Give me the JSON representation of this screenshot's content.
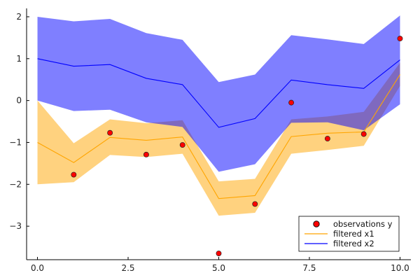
{
  "chart_data": {
    "type": "line",
    "title": "",
    "xlabel": "",
    "ylabel": "",
    "xlim": [
      -0.3,
      10.3
    ],
    "ylim": [
      -3.8,
      2.2
    ],
    "grid": false,
    "legend_position": "bottom-right",
    "x_ticks": [
      0,
      2.5,
      5,
      7.5,
      10
    ],
    "x_tick_labels": [
      "0.0",
      "2.5",
      "5.0",
      "7.5",
      "10.0"
    ],
    "y_ticks": [
      -3,
      -2,
      -1,
      0,
      1,
      2
    ],
    "y_tick_labels": [
      "−3",
      "−2",
      "−1",
      "0",
      "1",
      "2"
    ],
    "x": [
      0,
      1,
      2,
      3,
      4,
      5,
      6,
      7,
      8,
      9,
      10
    ],
    "series": [
      {
        "name": "filtered x2",
        "kind": "line_band",
        "color": "#0000ff",
        "fill": "#7d7dff",
        "mean": [
          1.0,
          0.82,
          0.86,
          0.53,
          0.38,
          -0.64,
          -0.43,
          0.49,
          0.38,
          0.29,
          0.97
        ],
        "lower": [
          0.0,
          -0.25,
          -0.22,
          -0.52,
          -0.63,
          -1.7,
          -1.52,
          -0.53,
          -0.52,
          -0.71,
          -0.09
        ],
        "upper": [
          2.0,
          1.89,
          1.95,
          1.61,
          1.45,
          0.44,
          0.62,
          1.56,
          1.46,
          1.35,
          2.03
        ]
      },
      {
        "name": "filtered x1",
        "kind": "line_band",
        "color": "#ffa500",
        "fill": "#ffa500",
        "mean": [
          -1.0,
          -1.48,
          -0.88,
          -0.95,
          -0.87,
          -2.34,
          -2.27,
          -0.86,
          -0.78,
          -0.75,
          0.62
        ],
        "lower": [
          -2.0,
          -1.95,
          -1.3,
          -1.35,
          -1.27,
          -2.75,
          -2.68,
          -1.27,
          -1.18,
          -1.08,
          0.35
        ],
        "upper": [
          0.0,
          -1.02,
          -0.45,
          -0.54,
          -0.47,
          -1.93,
          -1.87,
          -0.45,
          -0.38,
          -0.27,
          0.9
        ]
      },
      {
        "name": "observations y",
        "kind": "scatter",
        "color": "#ff0000",
        "values": [
          null,
          -1.77,
          -0.77,
          -1.29,
          -1.06,
          -3.65,
          -2.47,
          -0.05,
          -0.91,
          -0.8,
          1.48
        ]
      }
    ]
  }
}
